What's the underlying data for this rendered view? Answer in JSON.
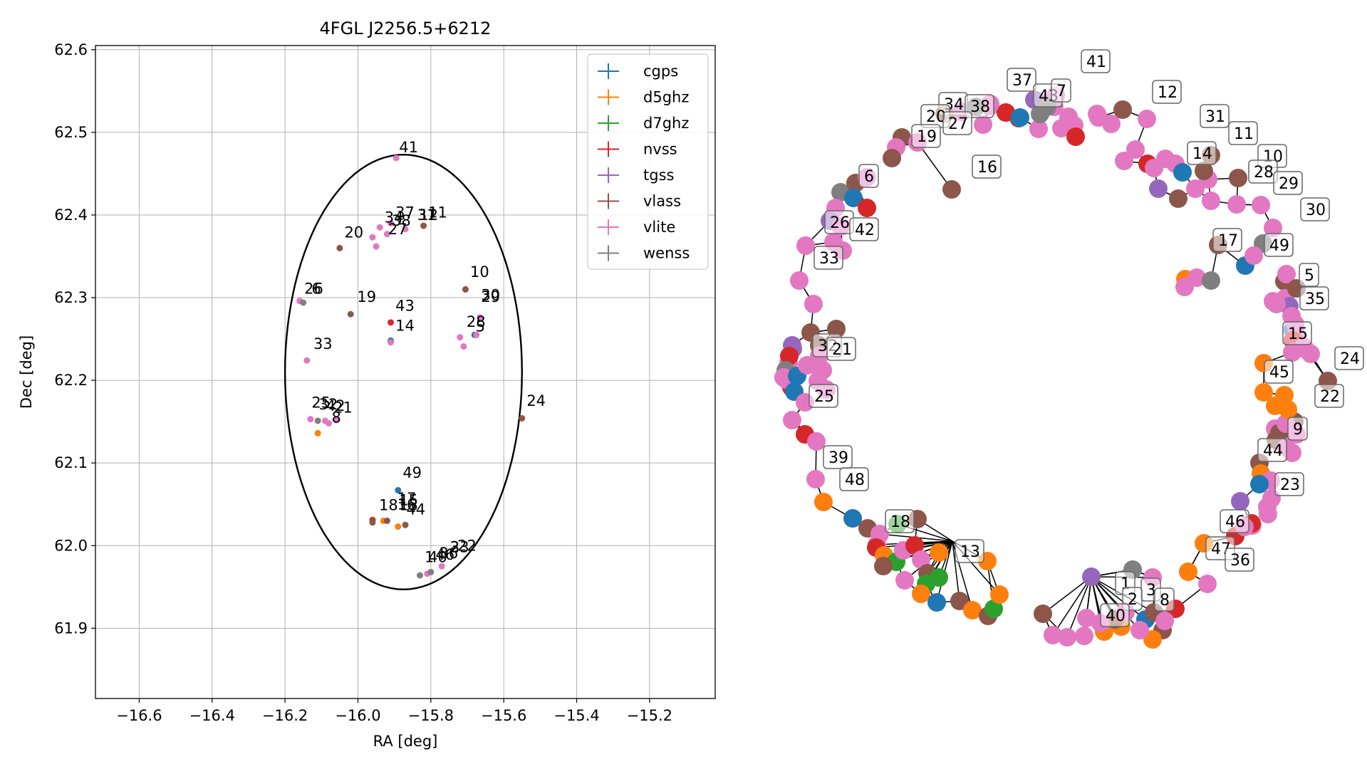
{
  "colors": {
    "cgps": "#1f77b4",
    "d5ghz": "#ff7f0e",
    "d7ghz": "#2ca02c",
    "nvss": "#d62728",
    "tgss": "#9467bd",
    "vlass": "#8c564b",
    "vlite": "#e377c2",
    "wenss": "#7f7f7f"
  },
  "chart_data": [
    {
      "type": "scatter",
      "title": "4FGL J2256.5+6212",
      "xlabel": "RA [deg]",
      "ylabel": "Dec [deg]",
      "xlim": [
        -16.72,
        -15.02
      ],
      "ylim": [
        61.815,
        62.605
      ],
      "xticks": [
        -16.6,
        -16.4,
        -16.2,
        -16.0,
        -15.8,
        -15.6,
        -15.4,
        -15.2
      ],
      "xtick_labels": [
        "−16.6",
        "−16.4",
        "−16.2",
        "−16.0",
        "−15.8",
        "−15.6",
        "−15.4",
        "−15.2"
      ],
      "yticks": [
        61.9,
        62.0,
        62.1,
        62.2,
        62.3,
        62.4,
        62.5,
        62.6
      ],
      "ytick_labels": [
        "61.9",
        "62.0",
        "62.1",
        "62.2",
        "62.3",
        "62.4",
        "62.5",
        "62.6"
      ],
      "grid": true,
      "legend_position": "top-right",
      "ellipse": {
        "ra_center": -15.875,
        "dec_center": 62.21,
        "ra_semi_axis": 0.325,
        "dec_semi_axis": 0.263
      },
      "series": [
        {
          "name": "cgps",
          "points": [
            [
              -15.89,
              62.067
            ],
            [
              -15.91,
              62.248
            ],
            [
              -15.68,
              62.255
            ]
          ]
        },
        {
          "name": "d5ghz",
          "points": [
            [
              -16.11,
              62.136
            ],
            [
              -15.89,
              62.023
            ],
            [
              -15.93,
              62.03
            ]
          ]
        },
        {
          "name": "d7ghz",
          "points": []
        },
        {
          "name": "nvss",
          "points": [
            [
              -15.91,
              62.27
            ],
            [
              -15.96,
              62.031
            ]
          ]
        },
        {
          "name": "tgss",
          "points": []
        },
        {
          "name": "vlass",
          "points": [
            [
              -15.55,
              62.154
            ],
            [
              -15.705,
              62.31
            ],
            [
              -16.02,
              62.28
            ],
            [
              -16.05,
              62.36
            ],
            [
              -15.82,
              62.387
            ],
            [
              -15.96,
              62.028
            ],
            [
              -15.92,
              62.03
            ],
            [
              -15.87,
              62.025
            ]
          ]
        },
        {
          "name": "vlite",
          "points": [
            [
              -15.895,
              62.469
            ],
            [
              -15.87,
              62.383
            ],
            [
              -15.91,
              62.39
            ],
            [
              -15.94,
              62.385
            ],
            [
              -15.96,
              62.373
            ],
            [
              -15.95,
              62.362
            ],
            [
              -15.92,
              62.377
            ],
            [
              -16.16,
              62.296
            ],
            [
              -16.14,
              62.224
            ],
            [
              -15.665,
              62.276
            ],
            [
              -15.72,
              62.252
            ],
            [
              -15.71,
              62.241
            ],
            [
              -15.675,
              62.255
            ],
            [
              -16.13,
              62.153
            ],
            [
              -16.09,
              62.151
            ],
            [
              -16.08,
              62.148
            ],
            [
              -16.06,
              62.152
            ],
            [
              -15.91,
              62.246
            ],
            [
              -15.77,
              61.975
            ],
            [
              -15.81,
              61.966
            ]
          ]
        },
        {
          "name": "wenss",
          "points": [
            [
              -16.15,
              62.294
            ],
            [
              -16.11,
              62.151
            ],
            [
              -15.83,
              61.964
            ],
            [
              -15.8,
              61.968
            ]
          ]
        }
      ],
      "annotations": [
        {
          "text": "41",
          "x": -15.895,
          "y": 62.469
        },
        {
          "text": "37",
          "x": -15.905,
          "y": 62.39
        },
        {
          "text": "31",
          "x": -15.845,
          "y": 62.387
        },
        {
          "text": "12",
          "x": -15.84,
          "y": 62.387
        },
        {
          "text": "11",
          "x": -15.815,
          "y": 62.39
        },
        {
          "text": "34",
          "x": -15.935,
          "y": 62.384
        },
        {
          "text": "38",
          "x": -15.915,
          "y": 62.38
        },
        {
          "text": "27",
          "x": -15.925,
          "y": 62.37
        },
        {
          "text": "20",
          "x": -16.045,
          "y": 62.366
        },
        {
          "text": "26",
          "x": -16.155,
          "y": 62.298
        },
        {
          "text": "6",
          "x": -16.135,
          "y": 62.298
        },
        {
          "text": "10",
          "x": -15.7,
          "y": 62.318
        },
        {
          "text": "30",
          "x": -15.67,
          "y": 62.29
        },
        {
          "text": "29",
          "x": -15.67,
          "y": 62.288
        },
        {
          "text": "19",
          "x": -16.01,
          "y": 62.288
        },
        {
          "text": "43",
          "x": -15.905,
          "y": 62.277
        },
        {
          "text": "14",
          "x": -15.905,
          "y": 62.253
        },
        {
          "text": "28",
          "x": -15.71,
          "y": 62.258
        },
        {
          "text": "5",
          "x": -15.685,
          "y": 62.252
        },
        {
          "text": "33",
          "x": -16.13,
          "y": 62.231
        },
        {
          "text": "25",
          "x": -16.135,
          "y": 62.16
        },
        {
          "text": "32",
          "x": -16.115,
          "y": 62.158
        },
        {
          "text": "42",
          "x": -16.095,
          "y": 62.156
        },
        {
          "text": "21",
          "x": -16.075,
          "y": 62.154
        },
        {
          "text": "8",
          "x": -16.08,
          "y": 62.142
        },
        {
          "text": "24",
          "x": -15.545,
          "y": 62.162
        },
        {
          "text": "49",
          "x": -15.885,
          "y": 62.075
        },
        {
          "text": "18",
          "x": -15.95,
          "y": 62.036
        },
        {
          "text": "17",
          "x": -15.9,
          "y": 62.044
        },
        {
          "text": "16",
          "x": -15.9,
          "y": 62.037
        },
        {
          "text": "13",
          "x": -15.895,
          "y": 62.036
        },
        {
          "text": "15",
          "x": -15.895,
          "y": 62.042
        },
        {
          "text": "44",
          "x": -15.875,
          "y": 62.031
        },
        {
          "text": "3",
          "x": -15.755,
          "y": 61.985
        },
        {
          "text": "23",
          "x": -15.755,
          "y": 61.985
        },
        {
          "text": "22",
          "x": -15.735,
          "y": 61.987
        },
        {
          "text": "1",
          "x": -15.825,
          "y": 61.973
        },
        {
          "text": "40",
          "x": -15.815,
          "y": 61.973
        },
        {
          "text": "46",
          "x": -15.795,
          "y": 61.976
        },
        {
          "text": "36",
          "x": -15.785,
          "y": 61.978
        }
      ]
    },
    {
      "type": "scatter",
      "title": "",
      "xlabel": "",
      "ylabel": "",
      "grid": false,
      "node_labels": [
        "41",
        "37",
        "43",
        "7",
        "12",
        "34",
        "38",
        "20",
        "27",
        "19",
        "31",
        "11",
        "14",
        "16",
        "10",
        "28",
        "29",
        "30",
        "6",
        "26",
        "42",
        "17",
        "49",
        "33",
        "5",
        "35",
        "15",
        "32",
        "21",
        "24",
        "45",
        "22",
        "25",
        "9",
        "39",
        "44",
        "48",
        "23",
        "18",
        "13",
        "46",
        "47",
        "36",
        "1",
        "3",
        "2",
        "8",
        "40"
      ]
    }
  ]
}
